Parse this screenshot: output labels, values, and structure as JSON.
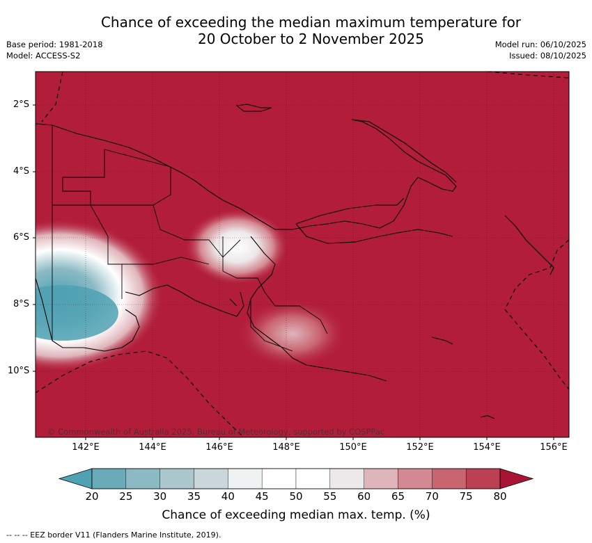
{
  "header": {
    "title_line1": "Chance of exceeding the median maximum temperature for",
    "title_line2": "20 October to 2 November 2025",
    "base_period": "Base period: 1981-2018",
    "model": "Model: ACCESS-S2",
    "model_run": "Model run: 06/10/2025",
    "issued": "Issued: 08/10/2025"
  },
  "map": {
    "lat_labels": [
      "2°S",
      "4°S",
      "6°S",
      "8°S",
      "10°S"
    ],
    "lon_labels": [
      "142°E",
      "144°E",
      "146°E",
      "148°E",
      "150°E",
      "152°E",
      "154°E",
      "156°E"
    ],
    "copyright": "© Commonwealth of Australia 2025, Bureau of Meteorology, supported by COSPPac",
    "background_color": "#b21d3a",
    "region": "Papua New Guinea"
  },
  "colorbar": {
    "ticks": [
      "20",
      "25",
      "30",
      "35",
      "40",
      "45",
      "50",
      "55",
      "60",
      "65",
      "70",
      "75",
      "80"
    ],
    "colors": [
      "#4fa1b3",
      "#6aabb9",
      "#8bbac4",
      "#abc6cc",
      "#c9d6da",
      "#eef2f3",
      "#ffffff",
      "#ffffff",
      "#ede9ea",
      "#dfb5bb",
      "#d48891",
      "#c96570",
      "#bb4152",
      "#a91434"
    ],
    "title": "Chance of exceeding median max. temp. (%)"
  },
  "footnote": "--  --  -- EEZ border V11 (Flanders Marine Institute, 2019)."
}
